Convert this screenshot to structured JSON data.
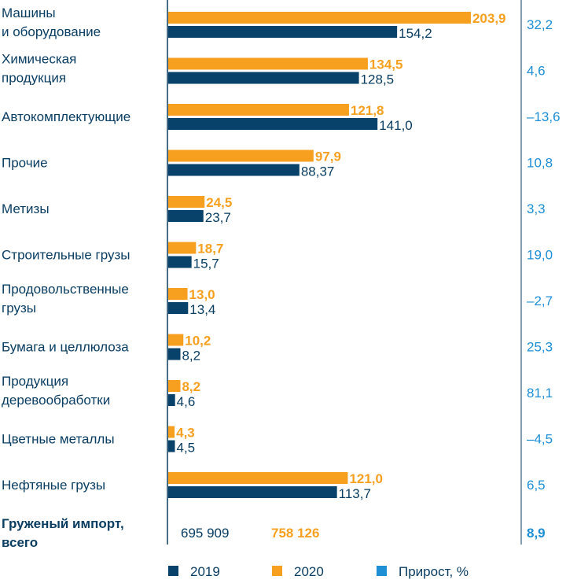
{
  "chart_data": {
    "type": "bar",
    "orientation": "horizontal",
    "categories": [
      [
        "Машины",
        "и оборудование"
      ],
      [
        "Химическая",
        "продукция"
      ],
      [
        "Автокомплектующие"
      ],
      [
        "Прочие"
      ],
      [
        "Метизы"
      ],
      [
        "Строительные грузы"
      ],
      [
        "Продовольственные",
        "грузы"
      ],
      [
        "Бумага и целлюлоза"
      ],
      [
        "Продукция",
        "деревообработки"
      ],
      [
        "Цветные металлы"
      ],
      [
        "Нефтяные грузы"
      ]
    ],
    "series": [
      {
        "name": "2019",
        "color": "#08426a",
        "values": [
          154.2,
          128.5,
          141.0,
          88.37,
          23.7,
          15.7,
          13.4,
          8.2,
          4.6,
          4.5,
          113.7
        ],
        "labels": [
          "154,2",
          "128,5",
          "141,0",
          "88,37",
          "23,7",
          "15,7",
          "13,4",
          "8,2",
          "4,6",
          "4,5",
          "113,7"
        ]
      },
      {
        "name": "2020",
        "color": "#f7a020",
        "values": [
          203.9,
          134.5,
          121.8,
          97.9,
          24.5,
          18.7,
          13.0,
          10.2,
          8.2,
          4.3,
          121.0
        ],
        "labels": [
          "203,9",
          "134,5",
          "121,8",
          "97,9",
          "24,5",
          "18,7",
          "13,0",
          "10,2",
          "8,2",
          "4,3",
          "121,0"
        ]
      },
      {
        "name": "Прирост, %",
        "color": "#1e8fd5",
        "labels": [
          "32,2",
          "4,6",
          "–13,6",
          "10,8",
          "3,3",
          "19,0",
          "–2,7",
          "25,3",
          "81,1",
          "–4,5",
          "6,5"
        ]
      }
    ],
    "total": {
      "label": [
        "Груженый импорт,",
        "всего"
      ],
      "v2019": "695 909",
      "v2020": "758 126",
      "growth": "8,9"
    },
    "xlim": [
      0,
      210
    ],
    "grid": false,
    "legend_placement": "bottom"
  }
}
